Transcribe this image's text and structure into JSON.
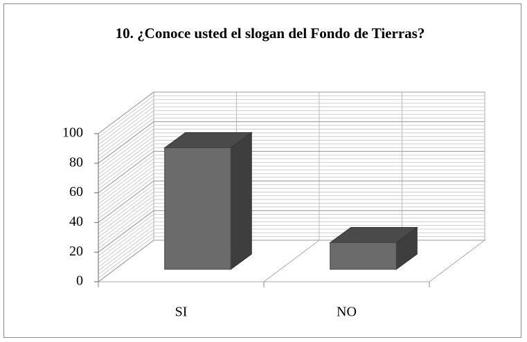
{
  "chart_data": {
    "type": "bar3d",
    "title": "10. ¿Conoce usted el slogan del Fondo de Tierras?",
    "categories": [
      "SI",
      "NO"
    ],
    "values": [
      82,
      18
    ],
    "color": "#6b6b6b",
    "ylim": [
      0,
      100
    ],
    "yticks": [
      0,
      20,
      40,
      60,
      80,
      100
    ],
    "grid": true
  }
}
